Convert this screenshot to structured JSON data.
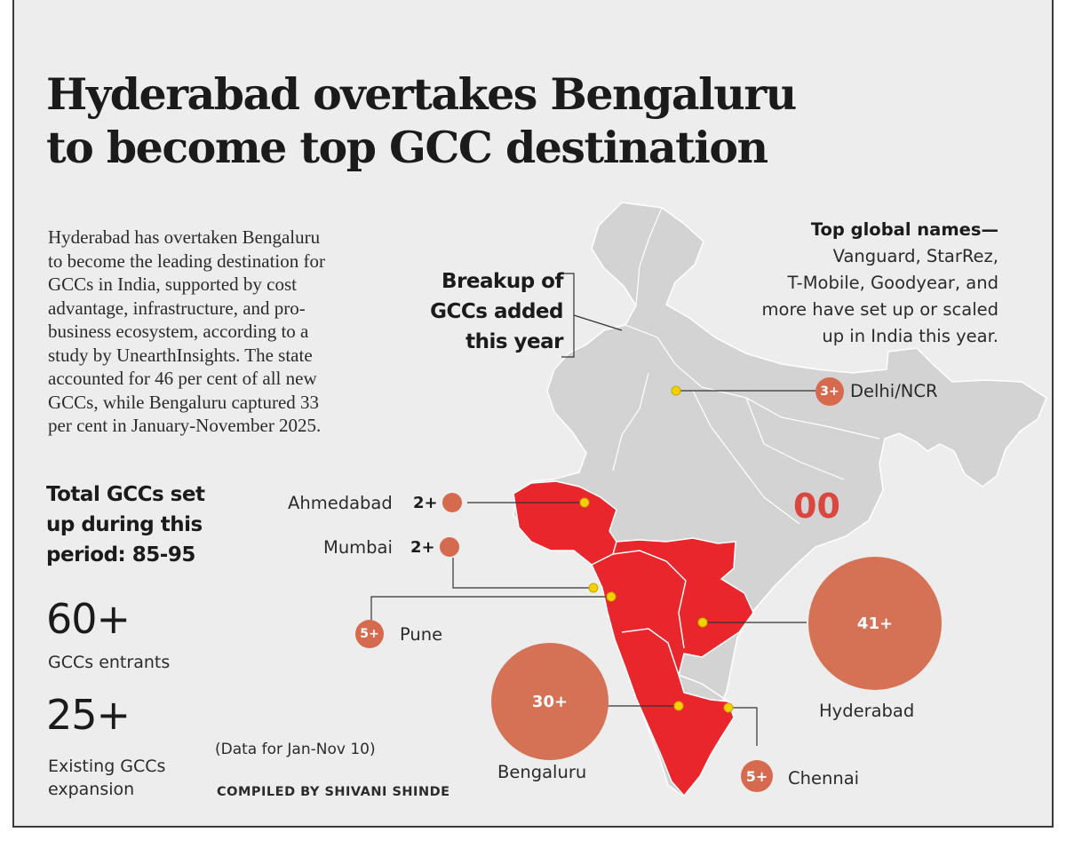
{
  "headline": {
    "line1": "Hyderabad overtakes Bengaluru",
    "line2": "to become top GCC destination"
  },
  "intro": {
    "lines": [
      "Hyderabad has overtaken Bengaluru",
      "to become the leading destination for",
      "GCCs in India, supported by cost",
      "advantage, infrastructure, and pro-",
      "business ecosystem, according to a",
      "study by UnearthInsights. The state",
      "accounted for 46 per cent of all new",
      "GCCs, while Bengaluru captured 33",
      "per cent in January-November 2025."
    ]
  },
  "breakup_label": {
    "line1": "Breakup of",
    "line2": "GCCs added",
    "line3": "this year"
  },
  "global_names": {
    "heading": "Top global names—",
    "lines": [
      "Vanguard, StarRez,",
      "T-Mobile, Goodyear, and",
      "more have set up or scaled",
      "up in India this year."
    ]
  },
  "totals": {
    "heading_line1": "Total GCCs set",
    "heading_line2": "up during this",
    "heading_line3": "period: 85-95",
    "entrants_value": "60+",
    "entrants_label": "GCCs entrants",
    "expansion_value": "25+",
    "expansion_label_line1": "Existing GCCs",
    "expansion_label_line2": "expansion"
  },
  "note": "(Data for Jan-Nov 10)",
  "credit": "COMPILED BY SHIVANI SHINDE",
  "stray_mark": "00",
  "cities": {
    "delhi": {
      "name": "Delhi/NCR",
      "count": "3+"
    },
    "ahmedabad": {
      "name": "Ahmedabad",
      "count": "2+"
    },
    "mumbai": {
      "name": "Mumbai",
      "count": "2+"
    },
    "pune": {
      "name": "Pune",
      "count": "5+"
    },
    "hyderabad": {
      "name": "Hyderabad",
      "count": "41+"
    },
    "bengaluru": {
      "name": "Bengaluru",
      "count": "30+"
    },
    "chennai": {
      "name": "Chennai",
      "count": "5+"
    }
  },
  "highlighted_states": [
    "Gujarat",
    "Maharashtra",
    "Telangana",
    "Karnataka",
    "Tamil Nadu"
  ],
  "colors": {
    "background": "#ededed",
    "map_land": "#d3d3d3",
    "highlight": "#e8262c",
    "bubble": "#d57256",
    "marker": "#f5d000",
    "text": "#1b1b1b"
  }
}
